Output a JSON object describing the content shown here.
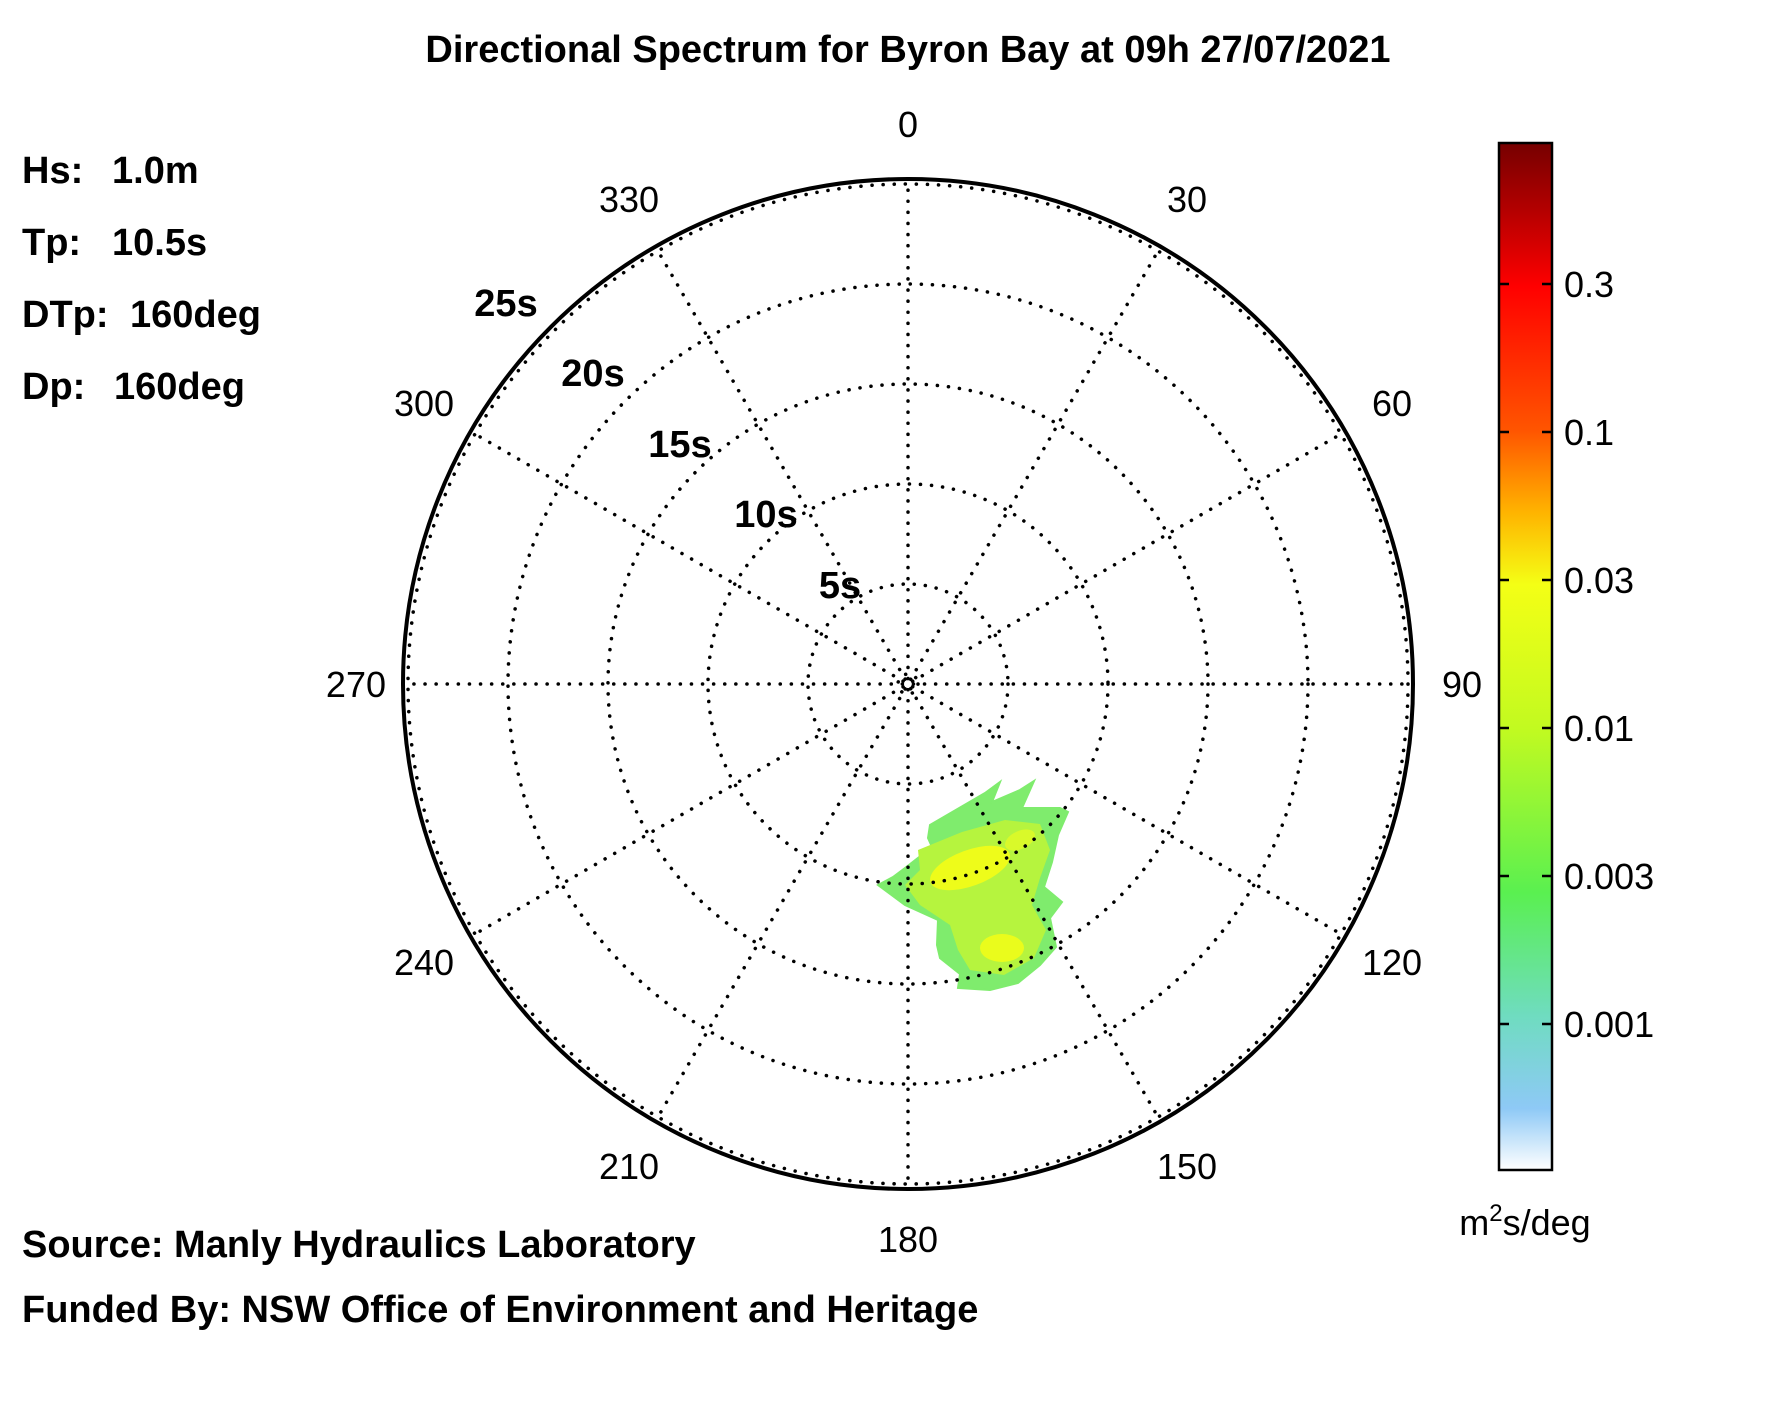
{
  "chart_data": {
    "type": "heatmap",
    "title": "Directional Spectrum for Byron Bay at 09h 27/07/2021",
    "projection": "polar",
    "stats": [
      {
        "label": "Hs:",
        "value": "1.0m"
      },
      {
        "label": "Tp:",
        "value": "10.5s"
      },
      {
        "label": "DTp:",
        "value": "160deg"
      },
      {
        "label": "Dp:",
        "value": "160deg"
      }
    ],
    "direction_labels": [
      "0",
      "30",
      "60",
      "90",
      "120",
      "150",
      "180",
      "210",
      "240",
      "270",
      "300",
      "330"
    ],
    "period_rings": [
      "5s",
      "10s",
      "15s",
      "20s",
      "25s"
    ],
    "grid": true,
    "colorbar": {
      "unit_prefix": "m",
      "unit_sup": "2",
      "unit_suffix": "s/deg",
      "ticks": [
        "0.001",
        "0.003",
        "0.01",
        "0.03",
        "0.1",
        "0.3"
      ],
      "colors": [
        "#ffffff",
        "#8ec9f6",
        "#6fdcc0",
        "#5af050",
        "#f4ff15",
        "#ffb400",
        "#ff5500",
        "#ff0000",
        "#b80000",
        "#760000"
      ]
    },
    "energy_region": {
      "peak_direction_deg": 160,
      "peak_period_s": 10.5,
      "direction_range_deg": [
        140,
        180
      ],
      "period_range_s": [
        8,
        15
      ],
      "max_level": "0.01"
    }
  },
  "footer": {
    "source": "Source: Manly Hydraulics Laboratory",
    "funded": "Funded By: NSW Office of Environment and Heritage"
  }
}
